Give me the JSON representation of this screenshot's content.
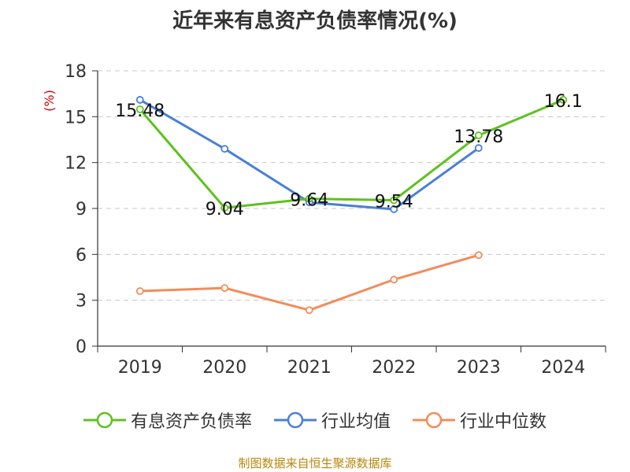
{
  "chart_data": {
    "type": "line",
    "title": "近年来有息资产负债率情况(%)",
    "ylabel": "(%)",
    "xlabel": "",
    "categories": [
      "2019",
      "2020",
      "2021",
      "2022",
      "2023",
      "2024"
    ],
    "ylim": [
      0,
      18
    ],
    "yticks": [
      0,
      3,
      6,
      9,
      12,
      15,
      18
    ],
    "grid": true,
    "legend_position": "bottom",
    "series": [
      {
        "name": "有息资产负债率",
        "color": "#5cc21e",
        "values": [
          15.48,
          9.04,
          9.64,
          9.54,
          13.78,
          16.1
        ],
        "labels": [
          "15.48",
          "9.04",
          "9.64",
          "9.54",
          "13.78",
          "16.1"
        ]
      },
      {
        "name": "行业均值",
        "color": "#4a7fd8",
        "values": [
          16.1,
          12.9,
          9.4,
          8.95,
          12.95,
          null
        ]
      },
      {
        "name": "行业中位数",
        "color": "#f28c5a",
        "values": [
          3.6,
          3.8,
          2.35,
          4.35,
          5.95,
          null
        ]
      }
    ]
  },
  "source_note": "制图数据来自恒生聚源数据库"
}
